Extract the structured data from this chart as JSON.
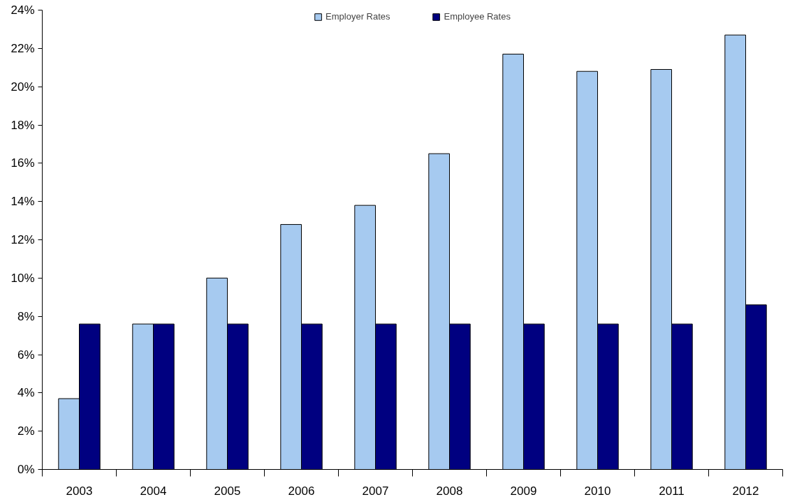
{
  "chart_data": {
    "type": "bar",
    "categories": [
      "2003",
      "2004",
      "2005",
      "2006",
      "2007",
      "2008",
      "2009",
      "2010",
      "2011",
      "2012"
    ],
    "series": [
      {
        "name": "Employer Rates",
        "color": "#a6caf0",
        "values": [
          3.7,
          7.6,
          10.0,
          12.8,
          13.8,
          16.5,
          21.7,
          20.8,
          20.9,
          22.7
        ]
      },
      {
        "name": "Employee Rates",
        "color": "#000080",
        "values": [
          7.6,
          7.6,
          7.6,
          7.6,
          7.6,
          7.6,
          7.6,
          7.6,
          7.6,
          8.6
        ]
      }
    ],
    "ylim": [
      0,
      24
    ],
    "yticks": [
      {
        "value": 0,
        "label": "0%"
      },
      {
        "value": 2,
        "label": "2%"
      },
      {
        "value": 4,
        "label": "4%"
      },
      {
        "value": 6,
        "label": "6%"
      },
      {
        "value": 8,
        "label": "8%"
      },
      {
        "value": 10,
        "label": "10%"
      },
      {
        "value": 12,
        "label": "12%"
      },
      {
        "value": 14,
        "label": "14%"
      },
      {
        "value": 16,
        "label": "16%"
      },
      {
        "value": 18,
        "label": "18%"
      },
      {
        "value": 20,
        "label": "20%"
      },
      {
        "value": 22,
        "label": "22%"
      },
      {
        "value": 24,
        "label": "24%"
      }
    ],
    "grid": false,
    "legend": "top"
  }
}
